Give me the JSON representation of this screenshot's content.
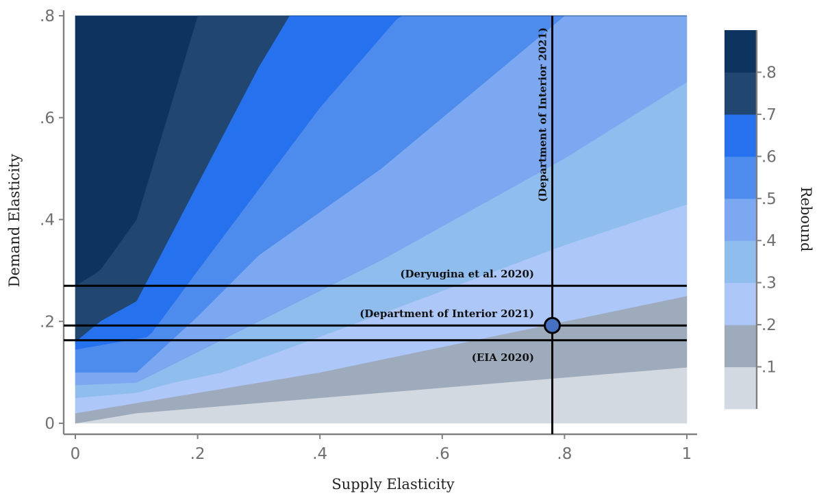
{
  "chart_data": {
    "type": "heatmap",
    "subtype": "filled-contour",
    "xlabel": "Supply Elasticity",
    "ylabel": "Demand Elasticity",
    "xlim": [
      0,
      1
    ],
    "ylim": [
      0,
      0.8
    ],
    "x_ticks": [
      {
        "value": 0,
        "label": "0"
      },
      {
        "value": 0.2,
        "label": ".2"
      },
      {
        "value": 0.4,
        "label": ".4"
      },
      {
        "value": 0.6,
        "label": ".6"
      },
      {
        "value": 0.8,
        "label": ".8"
      },
      {
        "value": 1,
        "label": "1"
      }
    ],
    "y_ticks": [
      {
        "value": 0,
        "label": "0"
      },
      {
        "value": 0.2,
        "label": ".2"
      },
      {
        "value": 0.4,
        "label": ".4"
      },
      {
        "value": 0.6,
        "label": ".6"
      },
      {
        "value": 0.8,
        "label": ".8"
      }
    ],
    "grid": false,
    "legend": {
      "title": "Rebound",
      "placement": "right",
      "ticks": [
        {
          "value": 0.1,
          "label": ".1"
        },
        {
          "value": 0.2,
          "label": ".2"
        },
        {
          "value": 0.3,
          "label": ".3"
        },
        {
          "value": 0.4,
          "label": ".4"
        },
        {
          "value": 0.5,
          "label": ".5"
        },
        {
          "value": 0.6,
          "label": ".6"
        },
        {
          "value": 0.7,
          "label": ".7"
        },
        {
          "value": 0.8,
          "label": ".8"
        }
      ]
    },
    "contour_levels": [
      {
        "from": 0.0,
        "to": 0.1,
        "color": "#d3d9e1"
      },
      {
        "from": 0.1,
        "to": 0.2,
        "color": "#9dabbc"
      },
      {
        "from": 0.2,
        "to": 0.3,
        "color": "#adc8f8"
      },
      {
        "from": 0.3,
        "to": 0.4,
        "color": "#8fbdee"
      },
      {
        "from": 0.4,
        "to": 0.5,
        "color": "#7ba8f0"
      },
      {
        "from": 0.5,
        "to": 0.6,
        "color": "#4d8bed"
      },
      {
        "from": 0.6,
        "to": 0.7,
        "color": "#2671ee"
      },
      {
        "from": 0.7,
        "to": 0.8,
        "color": "#21466f"
      },
      {
        "from": 0.8,
        "to": 0.9,
        "color": "#0d345f"
      }
    ],
    "contour_boundaries": [
      {
        "level": 0.1,
        "points": [
          [
            0,
            0
          ],
          [
            0.1,
            0.02
          ],
          [
            0.2,
            0.03
          ],
          [
            0.4,
            0.05
          ],
          [
            0.6,
            0.07
          ],
          [
            0.8,
            0.09
          ],
          [
            1,
            0.11
          ]
        ]
      },
      {
        "level": 0.2,
        "points": [
          [
            0,
            0.02
          ],
          [
            0.1,
            0.04
          ],
          [
            0.2,
            0.06
          ],
          [
            0.4,
            0.1
          ],
          [
            0.6,
            0.15
          ],
          [
            0.8,
            0.2
          ],
          [
            1,
            0.25
          ]
        ]
      },
      {
        "level": 0.3,
        "points": [
          [
            0,
            0.05
          ],
          [
            0.1,
            0.06
          ],
          [
            0.16,
            0.08
          ],
          [
            0.24,
            0.1
          ],
          [
            0.4,
            0.17
          ],
          [
            0.6,
            0.26
          ],
          [
            0.8,
            0.35
          ],
          [
            1,
            0.43
          ]
        ]
      },
      {
        "level": 0.4,
        "points": [
          [
            0,
            0.075
          ],
          [
            0.1,
            0.08
          ],
          [
            0.2,
            0.14
          ],
          [
            0.3,
            0.2
          ],
          [
            0.5,
            0.32
          ],
          [
            0.8,
            0.52
          ],
          [
            1,
            0.67
          ]
        ]
      },
      {
        "level": 0.5,
        "points": [
          [
            0,
            0.1
          ],
          [
            0.1,
            0.1
          ],
          [
            0.2,
            0.21
          ],
          [
            0.3,
            0.33
          ],
          [
            0.5,
            0.5
          ],
          [
            0.62,
            0.62
          ],
          [
            0.8,
            0.8
          ]
        ]
      },
      {
        "level": 0.6,
        "points": [
          [
            0,
            0.145
          ],
          [
            0.12,
            0.17
          ],
          [
            0.2,
            0.3
          ],
          [
            0.3,
            0.46
          ],
          [
            0.4,
            0.62
          ],
          [
            0.53,
            0.8
          ]
        ]
      },
      {
        "level": 0.7,
        "points": [
          [
            0,
            0.16
          ],
          [
            0.04,
            0.2
          ],
          [
            0.1,
            0.24
          ],
          [
            0.2,
            0.47
          ],
          [
            0.3,
            0.7
          ],
          [
            0.35,
            0.8
          ]
        ]
      },
      {
        "level": 0.8,
        "points": [
          [
            0,
            0.27
          ],
          [
            0.04,
            0.3
          ],
          [
            0.1,
            0.4
          ],
          [
            0.2,
            0.8
          ]
        ]
      }
    ],
    "reference_lines": [
      {
        "orientation": "horizontal",
        "value": 0.27,
        "label": "(Deryugina et al. 2020)"
      },
      {
        "orientation": "horizontal",
        "value": 0.192,
        "label": "(Department of Interior 2021)"
      },
      {
        "orientation": "horizontal",
        "value": 0.163,
        "label": "(EIA 2020)"
      },
      {
        "orientation": "vertical",
        "value": 0.78,
        "label": "(Department of Interior 2021)"
      }
    ],
    "marker": {
      "x": 0.78,
      "y": 0.192,
      "color": "#4471c2"
    }
  },
  "colors": {
    "axis": "#808080",
    "reference_line": "#000000"
  }
}
